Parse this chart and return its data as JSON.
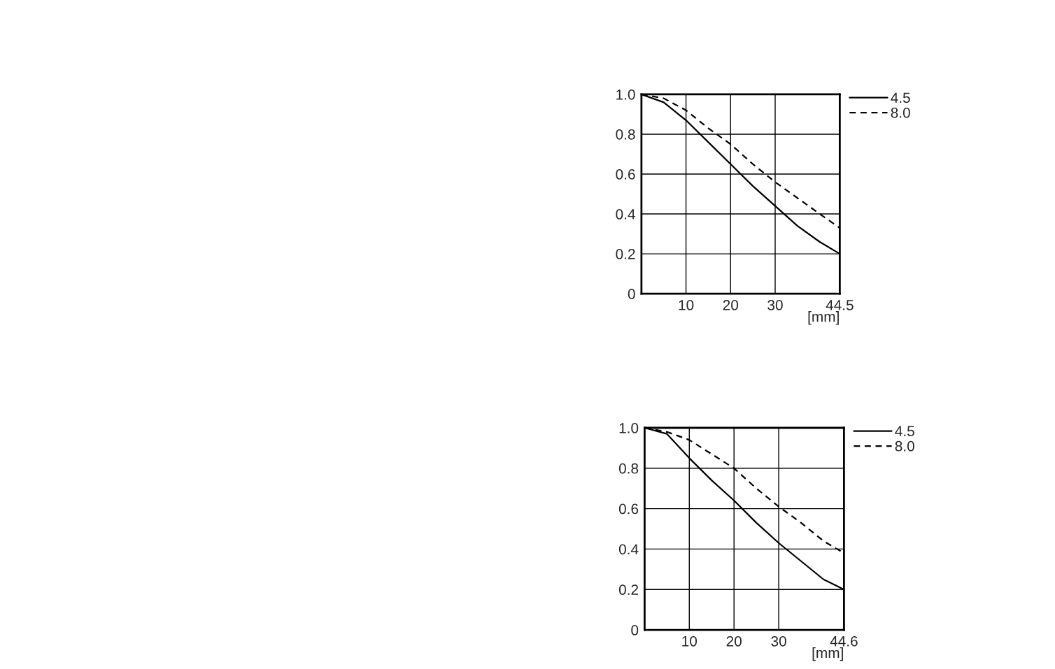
{
  "chart_data": [
    {
      "type": "line",
      "xlabel": "[mm]",
      "xlim": [
        0,
        44.5
      ],
      "xticks": [
        10,
        20,
        30,
        44.5
      ],
      "ylim": [
        0,
        1
      ],
      "yticks": [
        0,
        0.2,
        0.4,
        0.6,
        0.8,
        {
          "value": 1,
          "label": "1.0"
        }
      ],
      "grid": true,
      "legend": "top right",
      "marker": "none",
      "series": [
        {
          "name": "4.5",
          "color": "#000000",
          "line_style": "solid",
          "x": [
            0,
            5,
            10,
            15,
            20,
            25,
            30,
            35,
            40,
            44.5
          ],
          "values": [
            1.0,
            0.96,
            0.87,
            0.76,
            0.65,
            0.54,
            0.44,
            0.34,
            0.26,
            0.2
          ]
        },
        {
          "name": "8.0",
          "color": "#000000",
          "line_style": "dashed",
          "x": [
            0,
            5,
            10,
            15,
            20,
            25,
            30,
            35,
            40,
            44.5
          ],
          "values": [
            1.0,
            0.98,
            0.92,
            0.83,
            0.75,
            0.65,
            0.56,
            0.48,
            0.4,
            0.33
          ]
        }
      ]
    },
    {
      "type": "line",
      "xlabel": "[mm]",
      "xlim": [
        0,
        44.6
      ],
      "xticks": [
        10,
        20,
        30,
        44.6
      ],
      "ylim": [
        0,
        1
      ],
      "yticks": [
        0,
        0.2,
        0.4,
        0.6,
        0.8,
        {
          "value": 1,
          "label": "1.0"
        }
      ],
      "grid": true,
      "legend": "top right",
      "marker": "none",
      "series": [
        {
          "name": "4.5",
          "color": "#000000",
          "line_style": "solid",
          "x": [
            0,
            5,
            10,
            15,
            20,
            25,
            30,
            35,
            40,
            44.6
          ],
          "values": [
            1.0,
            0.97,
            0.85,
            0.74,
            0.64,
            0.53,
            0.43,
            0.34,
            0.25,
            0.2
          ]
        },
        {
          "name": "8.0",
          "color": "#000000",
          "line_style": "dashed",
          "x": [
            0,
            5,
            10,
            15,
            20,
            25,
            30,
            35,
            40,
            44.6
          ],
          "values": [
            1.0,
            0.98,
            0.94,
            0.87,
            0.8,
            0.7,
            0.61,
            0.53,
            0.44,
            0.38
          ]
        }
      ]
    }
  ]
}
